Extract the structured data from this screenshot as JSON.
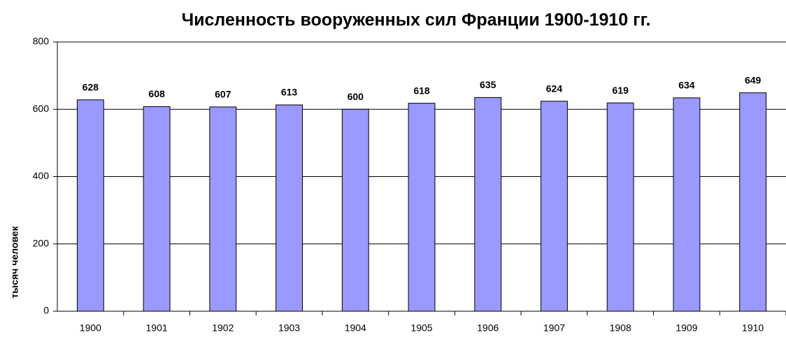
{
  "chart_data": {
    "type": "bar",
    "title": "Численность вооруженных сил Франции 1900-1910 гг.",
    "y_label": "тысяч человек",
    "categories": [
      "1900",
      "1901",
      "1902",
      "1903",
      "1904",
      "1905",
      "1906",
      "1907",
      "1908",
      "1909",
      "1910"
    ],
    "values": [
      628,
      608,
      607,
      613,
      600,
      618,
      635,
      624,
      619,
      634,
      649
    ],
    "color": "#9999ff",
    "ylim": [
      0,
      800
    ],
    "yticks": [
      0,
      200,
      400,
      600,
      800
    ],
    "grid": true
  }
}
